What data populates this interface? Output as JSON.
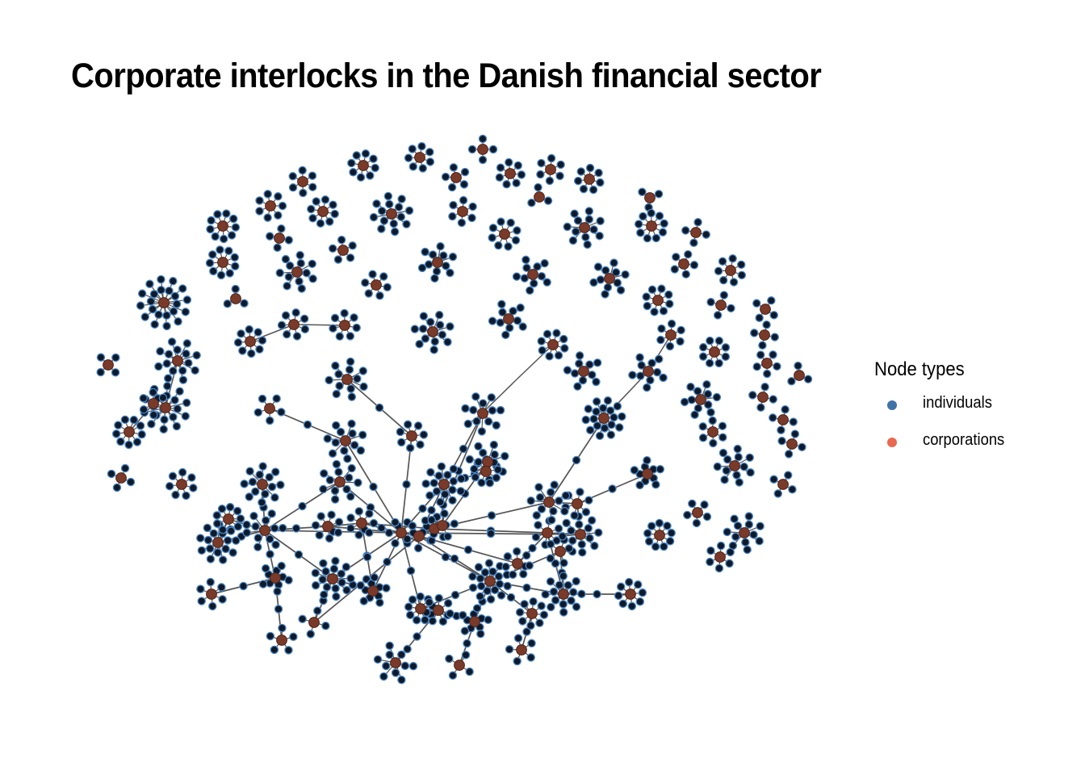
{
  "title": "Corporate interlocks in the Danish financial sector",
  "legend": {
    "title": "Node types",
    "items": [
      {
        "label": "individuals",
        "color": "#3f73a8"
      },
      {
        "label": "corporations",
        "color": "#e8694f"
      }
    ]
  },
  "node_style": {
    "individual_fill": "#0e1a2b",
    "individual_stroke": "#4d87c4",
    "corporation_fill": "#7a3a2a",
    "corporation_stroke": "#4a2418",
    "edge_color": "#555555"
  }
}
